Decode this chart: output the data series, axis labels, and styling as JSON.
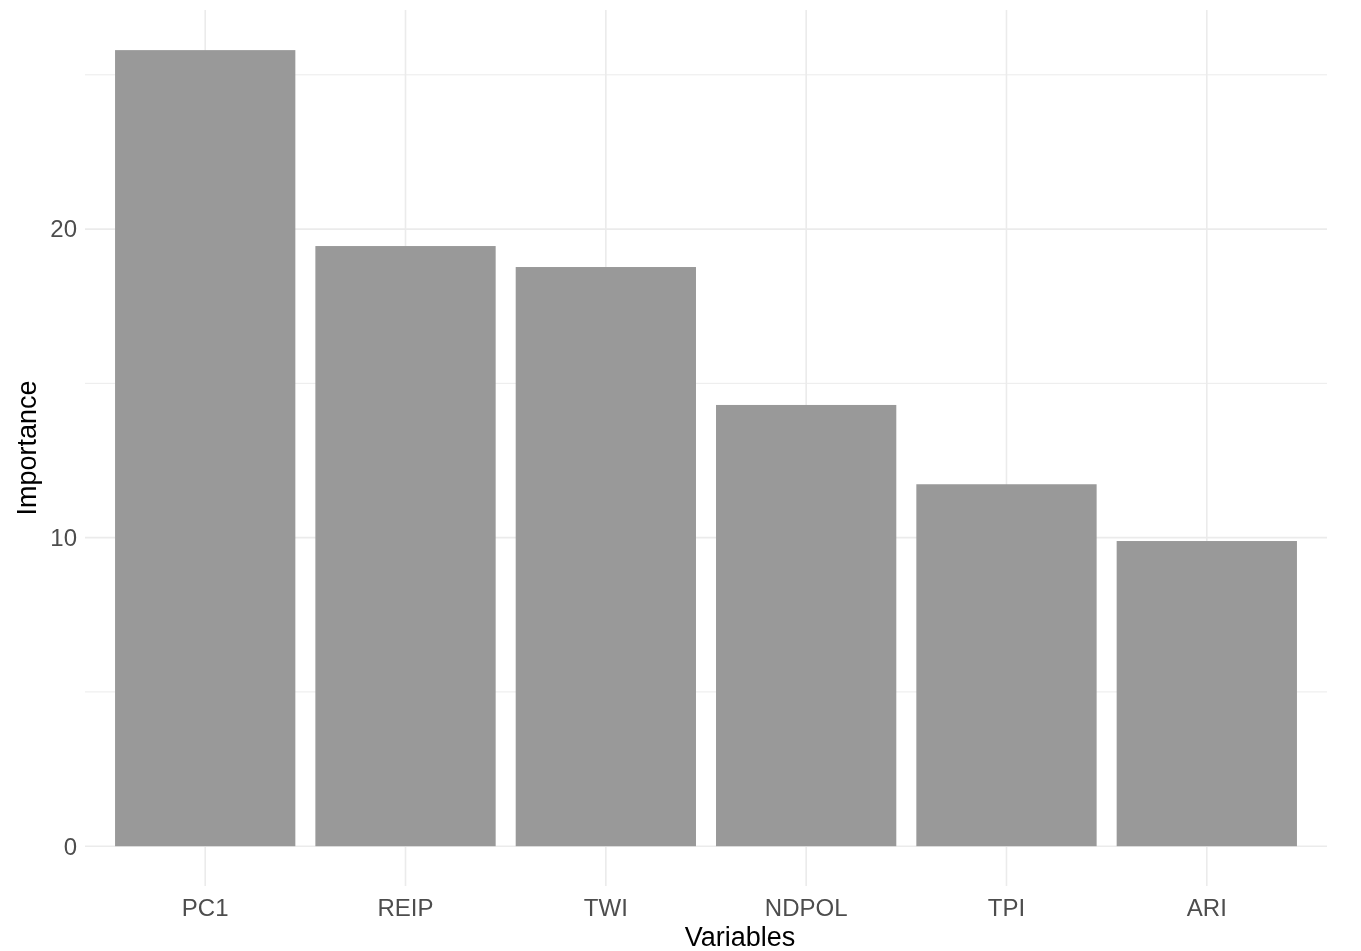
{
  "chart_data": {
    "type": "bar",
    "xlabel": "Variables",
    "ylabel": "Importance",
    "categories": [
      "PC1",
      "REIP",
      "TWI",
      "NDPOL",
      "TPI",
      "ARI"
    ],
    "values": [
      25.8,
      19.45,
      18.77,
      14.3,
      11.73,
      9.89
    ],
    "color": "#999999",
    "ylim": [
      -1.29,
      27.1
    ],
    "yticks": [
      0,
      {
        "value": 5,
        "label": null
      },
      10,
      {
        "value": 15,
        "label": null
      },
      20,
      {
        "value": 25,
        "label": null
      }
    ],
    "grid": true
  }
}
